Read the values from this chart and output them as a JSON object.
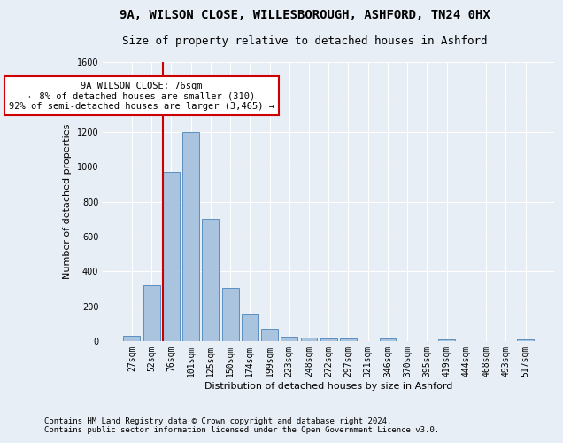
{
  "title1": "9A, WILSON CLOSE, WILLESBOROUGH, ASHFORD, TN24 0HX",
  "title2": "Size of property relative to detached houses in Ashford",
  "xlabel": "Distribution of detached houses by size in Ashford",
  "ylabel": "Number of detached properties",
  "footer1": "Contains HM Land Registry data © Crown copyright and database right 2024.",
  "footer2": "Contains public sector information licensed under the Open Government Licence v3.0.",
  "annotation_line1": "9A WILSON CLOSE: 76sqm",
  "annotation_line2": "← 8% of detached houses are smaller (310)",
  "annotation_line3": "92% of semi-detached houses are larger (3,465) →",
  "bar_labels": [
    "27sqm",
    "52sqm",
    "76sqm",
    "101sqm",
    "125sqm",
    "150sqm",
    "174sqm",
    "199sqm",
    "223sqm",
    "248sqm",
    "272sqm",
    "297sqm",
    "321sqm",
    "346sqm",
    "370sqm",
    "395sqm",
    "419sqm",
    "444sqm",
    "468sqm",
    "493sqm",
    "517sqm"
  ],
  "bar_values": [
    30,
    320,
    970,
    1200,
    700,
    305,
    155,
    70,
    25,
    20,
    15,
    15,
    0,
    15,
    0,
    0,
    12,
    0,
    0,
    0,
    12
  ],
  "bar_color": "#aac4e0",
  "bar_edge_color": "#5a8fc0",
  "highlight_index": 2,
  "highlight_line_color": "#cc0000",
  "annotation_box_color": "#cc0000",
  "ylim": [
    0,
    1600
  ],
  "yticks": [
    0,
    200,
    400,
    600,
    800,
    1000,
    1200,
    1400,
    1600
  ],
  "background_color": "#e8eef5",
  "grid_color": "#ffffff",
  "title_fontsize": 10,
  "subtitle_fontsize": 9,
  "axis_label_fontsize": 8,
  "tick_fontsize": 7,
  "footer_fontsize": 6.5,
  "annotation_fontsize": 7.5
}
